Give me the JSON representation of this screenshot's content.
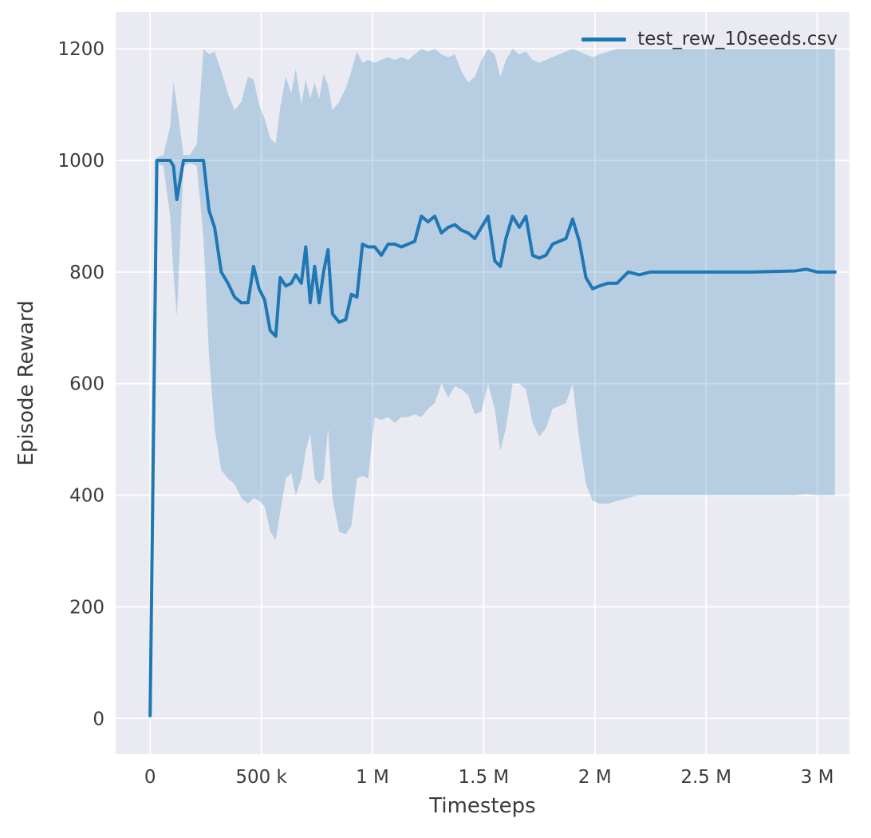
{
  "figure": {
    "background": "#ffffff",
    "plot_background": "#eaeaf2",
    "grid_color": "#ffffff",
    "tick_color": "#3d3d3d"
  },
  "chart_data": {
    "type": "line",
    "title": "",
    "xlabel": "Timesteps",
    "ylabel": "Episode Reward",
    "legend_position": "upper right",
    "grid": true,
    "xlim": [
      -155000,
      3145000
    ],
    "ylim": [
      -64,
      1266
    ],
    "x_ticks": {
      "values": [
        0,
        500000,
        1000000,
        1500000,
        2000000,
        2500000,
        3000000
      ],
      "labels": [
        "0",
        "500 k",
        "1 M",
        "1.5 M",
        "2 M",
        "2.5 M",
        "3 M"
      ]
    },
    "y_ticks": {
      "values": [
        0,
        200,
        400,
        600,
        800,
        1000,
        1200
      ],
      "labels": [
        "0",
        "200",
        "400",
        "600",
        "800",
        "1000",
        "1200"
      ]
    },
    "series": [
      {
        "name": "test_rew_10seeds.csv",
        "color": "#1f77b4",
        "band_opacity": 0.25,
        "x": [
          0,
          30000,
          60000,
          90000,
          105000,
          120000,
          150000,
          180000,
          210000,
          240000,
          265000,
          290000,
          320000,
          350000,
          380000,
          410000,
          440000,
          465000,
          490000,
          515000,
          540000,
          565000,
          585000,
          610000,
          635000,
          655000,
          680000,
          700000,
          720000,
          740000,
          760000,
          780000,
          800000,
          820000,
          850000,
          880000,
          905000,
          930000,
          955000,
          980000,
          1010000,
          1040000,
          1070000,
          1100000,
          1130000,
          1160000,
          1190000,
          1220000,
          1250000,
          1280000,
          1310000,
          1340000,
          1370000,
          1400000,
          1430000,
          1460000,
          1490000,
          1520000,
          1550000,
          1575000,
          1600000,
          1630000,
          1660000,
          1690000,
          1720000,
          1750000,
          1780000,
          1810000,
          1840000,
          1870000,
          1900000,
          1930000,
          1960000,
          1990000,
          2020000,
          2060000,
          2100000,
          2150000,
          2200000,
          2250000,
          2350000,
          2500000,
          2700000,
          2900000,
          2950000,
          3000000,
          3080000
        ],
        "mean": [
          5,
          1000,
          1000,
          1000,
          990,
          930,
          1000,
          1000,
          1000,
          1000,
          910,
          880,
          800,
          780,
          755,
          745,
          745,
          810,
          770,
          750,
          695,
          685,
          790,
          775,
          780,
          795,
          780,
          845,
          745,
          810,
          745,
          800,
          840,
          725,
          710,
          715,
          760,
          755,
          850,
          845,
          845,
          830,
          850,
          850,
          845,
          850,
          855,
          900,
          890,
          900,
          870,
          880,
          885,
          875,
          870,
          860,
          880,
          900,
          820,
          810,
          860,
          900,
          880,
          900,
          830,
          825,
          830,
          850,
          855,
          860,
          895,
          855,
          790,
          770,
          775,
          780,
          780,
          800,
          795,
          800,
          800,
          800,
          800,
          802,
          805,
          800,
          800
        ],
        "band_low": [
          3,
          995,
          990,
          900,
          800,
          720,
          990,
          995,
          990,
          860,
          650,
          520,
          445,
          430,
          420,
          395,
          385,
          395,
          390,
          380,
          335,
          320,
          370,
          430,
          440,
          400,
          430,
          480,
          510,
          430,
          420,
          430,
          520,
          395,
          335,
          330,
          345,
          430,
          435,
          430,
          540,
          535,
          540,
          530,
          540,
          540,
          545,
          540,
          555,
          565,
          600,
          575,
          595,
          590,
          580,
          545,
          550,
          600,
          555,
          480,
          520,
          600,
          600,
          590,
          530,
          505,
          520,
          555,
          560,
          565,
          600,
          500,
          420,
          390,
          385,
          385,
          390,
          395,
          400,
          400,
          400,
          400,
          400,
          400,
          402,
          400,
          400
        ],
        "band_high": [
          8,
          1005,
          1010,
          1060,
          1140,
          1100,
          1010,
          1010,
          1030,
          1200,
          1190,
          1195,
          1160,
          1120,
          1090,
          1105,
          1150,
          1145,
          1100,
          1075,
          1040,
          1030,
          1095,
          1150,
          1120,
          1165,
          1100,
          1145,
          1110,
          1140,
          1110,
          1155,
          1135,
          1090,
          1105,
          1130,
          1160,
          1195,
          1175,
          1180,
          1175,
          1180,
          1185,
          1180,
          1185,
          1180,
          1190,
          1200,
          1195,
          1200,
          1190,
          1185,
          1190,
          1160,
          1140,
          1150,
          1180,
          1200,
          1190,
          1150,
          1180,
          1200,
          1190,
          1195,
          1180,
          1175,
          1180,
          1185,
          1190,
          1195,
          1200,
          1195,
          1190,
          1185,
          1190,
          1195,
          1200,
          1200,
          1200,
          1200,
          1200,
          1200,
          1200,
          1200,
          1200,
          1200,
          1200
        ]
      }
    ]
  }
}
